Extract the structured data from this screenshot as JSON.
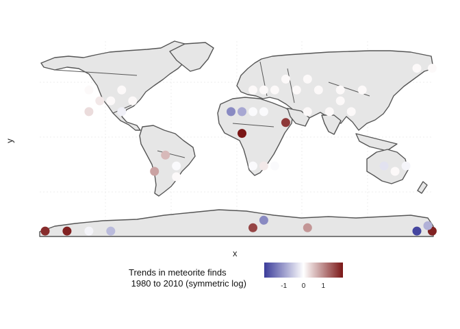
{
  "map": {
    "xlabel": "x",
    "ylabel": "y"
  },
  "legend": {
    "title_line1": "Trends in meteorite finds",
    "title_line2": " 1980 to 2010 (symmetric log)",
    "ticks": [
      {
        "value": -1,
        "label": "-1"
      },
      {
        "value": 0,
        "label": "0"
      },
      {
        "value": 1,
        "label": "1"
      }
    ],
    "range": [
      -2,
      2
    ],
    "colors": {
      "low": "#3b3c9a",
      "mid": "#ffffff",
      "high": "#7a1616"
    }
  },
  "colors": {
    "land": "#e6e6e6",
    "border": "#555555",
    "grid": "#eeeeee"
  },
  "points": [
    {
      "lon": -175,
      "lat": -85,
      "trend": 1.8
    },
    {
      "lon": -155,
      "lat": -85,
      "trend": 1.9
    },
    {
      "lon": -135,
      "lat": -85,
      "trend": -0.1
    },
    {
      "lon": -115,
      "lat": -85,
      "trend": -0.7
    },
    {
      "lon": 165,
      "lat": -85,
      "trend": -1.9
    },
    {
      "lon": 179,
      "lat": -85,
      "trend": 1.9
    },
    {
      "lon": 25,
      "lat": -75,
      "trend": -1.2
    },
    {
      "lon": 15,
      "lat": -82,
      "trend": 1.6
    },
    {
      "lon": 65,
      "lat": -82,
      "trend": 0.9
    },
    {
      "lon": 175,
      "lat": -80,
      "trend": -0.8
    },
    {
      "lon": -65,
      "lat": -15,
      "trend": 0.6
    },
    {
      "lon": -75,
      "lat": -30,
      "trend": 0.8
    },
    {
      "lon": -55,
      "lat": -25,
      "trend": -0.05
    },
    {
      "lon": -55,
      "lat": -35,
      "trend": 0.05
    },
    {
      "lon": 5,
      "lat": 5,
      "trend": 2.0
    },
    {
      "lon": 15,
      "lat": -25,
      "trend": -0.05
    },
    {
      "lon": 25,
      "lat": -25,
      "trend": 0.2
    },
    {
      "lon": 35,
      "lat": -25,
      "trend": -0.05
    },
    {
      "lon": 45,
      "lat": 15,
      "trend": 1.7
    },
    {
      "lon": 135,
      "lat": -25,
      "trend": -0.3
    },
    {
      "lon": 145,
      "lat": -30,
      "trend": 0.05
    },
    {
      "lon": 155,
      "lat": -25,
      "trend": -0.1
    },
    {
      "lon": -5,
      "lat": 25,
      "trend": -1.2
    },
    {
      "lon": 5,
      "lat": 25,
      "trend": -0.9
    },
    {
      "lon": 15,
      "lat": 25,
      "trend": -0.05
    },
    {
      "lon": 25,
      "lat": 25,
      "trend": -0.05
    },
    {
      "lon": -105,
      "lat": 25,
      "trend": -0.15
    },
    {
      "lon": -135,
      "lat": 25,
      "trend": 0.3
    },
    {
      "lon": -125,
      "lat": 35,
      "trend": 0.2
    },
    {
      "lon": -115,
      "lat": 35,
      "trend": 0.05
    },
    {
      "lon": -105,
      "lat": 45,
      "trend": 0.05
    },
    {
      "lon": -95,
      "lat": 35,
      "trend": 0.05
    },
    {
      "lon": -135,
      "lat": 45,
      "trend": 0.05
    },
    {
      "lon": 65,
      "lat": 25,
      "trend": 0.05
    },
    {
      "lon": 85,
      "lat": 25,
      "trend": 0.05
    },
    {
      "lon": 95,
      "lat": 35,
      "trend": 0.05
    },
    {
      "lon": 105,
      "lat": 25,
      "trend": 0.05
    },
    {
      "lon": 25,
      "lat": 45,
      "trend": 0.05
    },
    {
      "lon": 45,
      "lat": 55,
      "trend": 0.05
    },
    {
      "lon": 55,
      "lat": 45,
      "trend": 0.05
    },
    {
      "lon": 75,
      "lat": 45,
      "trend": 0.05
    },
    {
      "lon": 95,
      "lat": 45,
      "trend": 0.05
    },
    {
      "lon": 115,
      "lat": 45,
      "trend": 0.05
    },
    {
      "lon": 15,
      "lat": 45,
      "trend": 0.05
    },
    {
      "lon": 35,
      "lat": 45,
      "trend": 0.05
    },
    {
      "lon": 65,
      "lat": 55,
      "trend": 0.05
    },
    {
      "lon": 165,
      "lat": 65,
      "trend": 0.05
    },
    {
      "lon": 179,
      "lat": 65,
      "trend": 0.05
    }
  ]
}
